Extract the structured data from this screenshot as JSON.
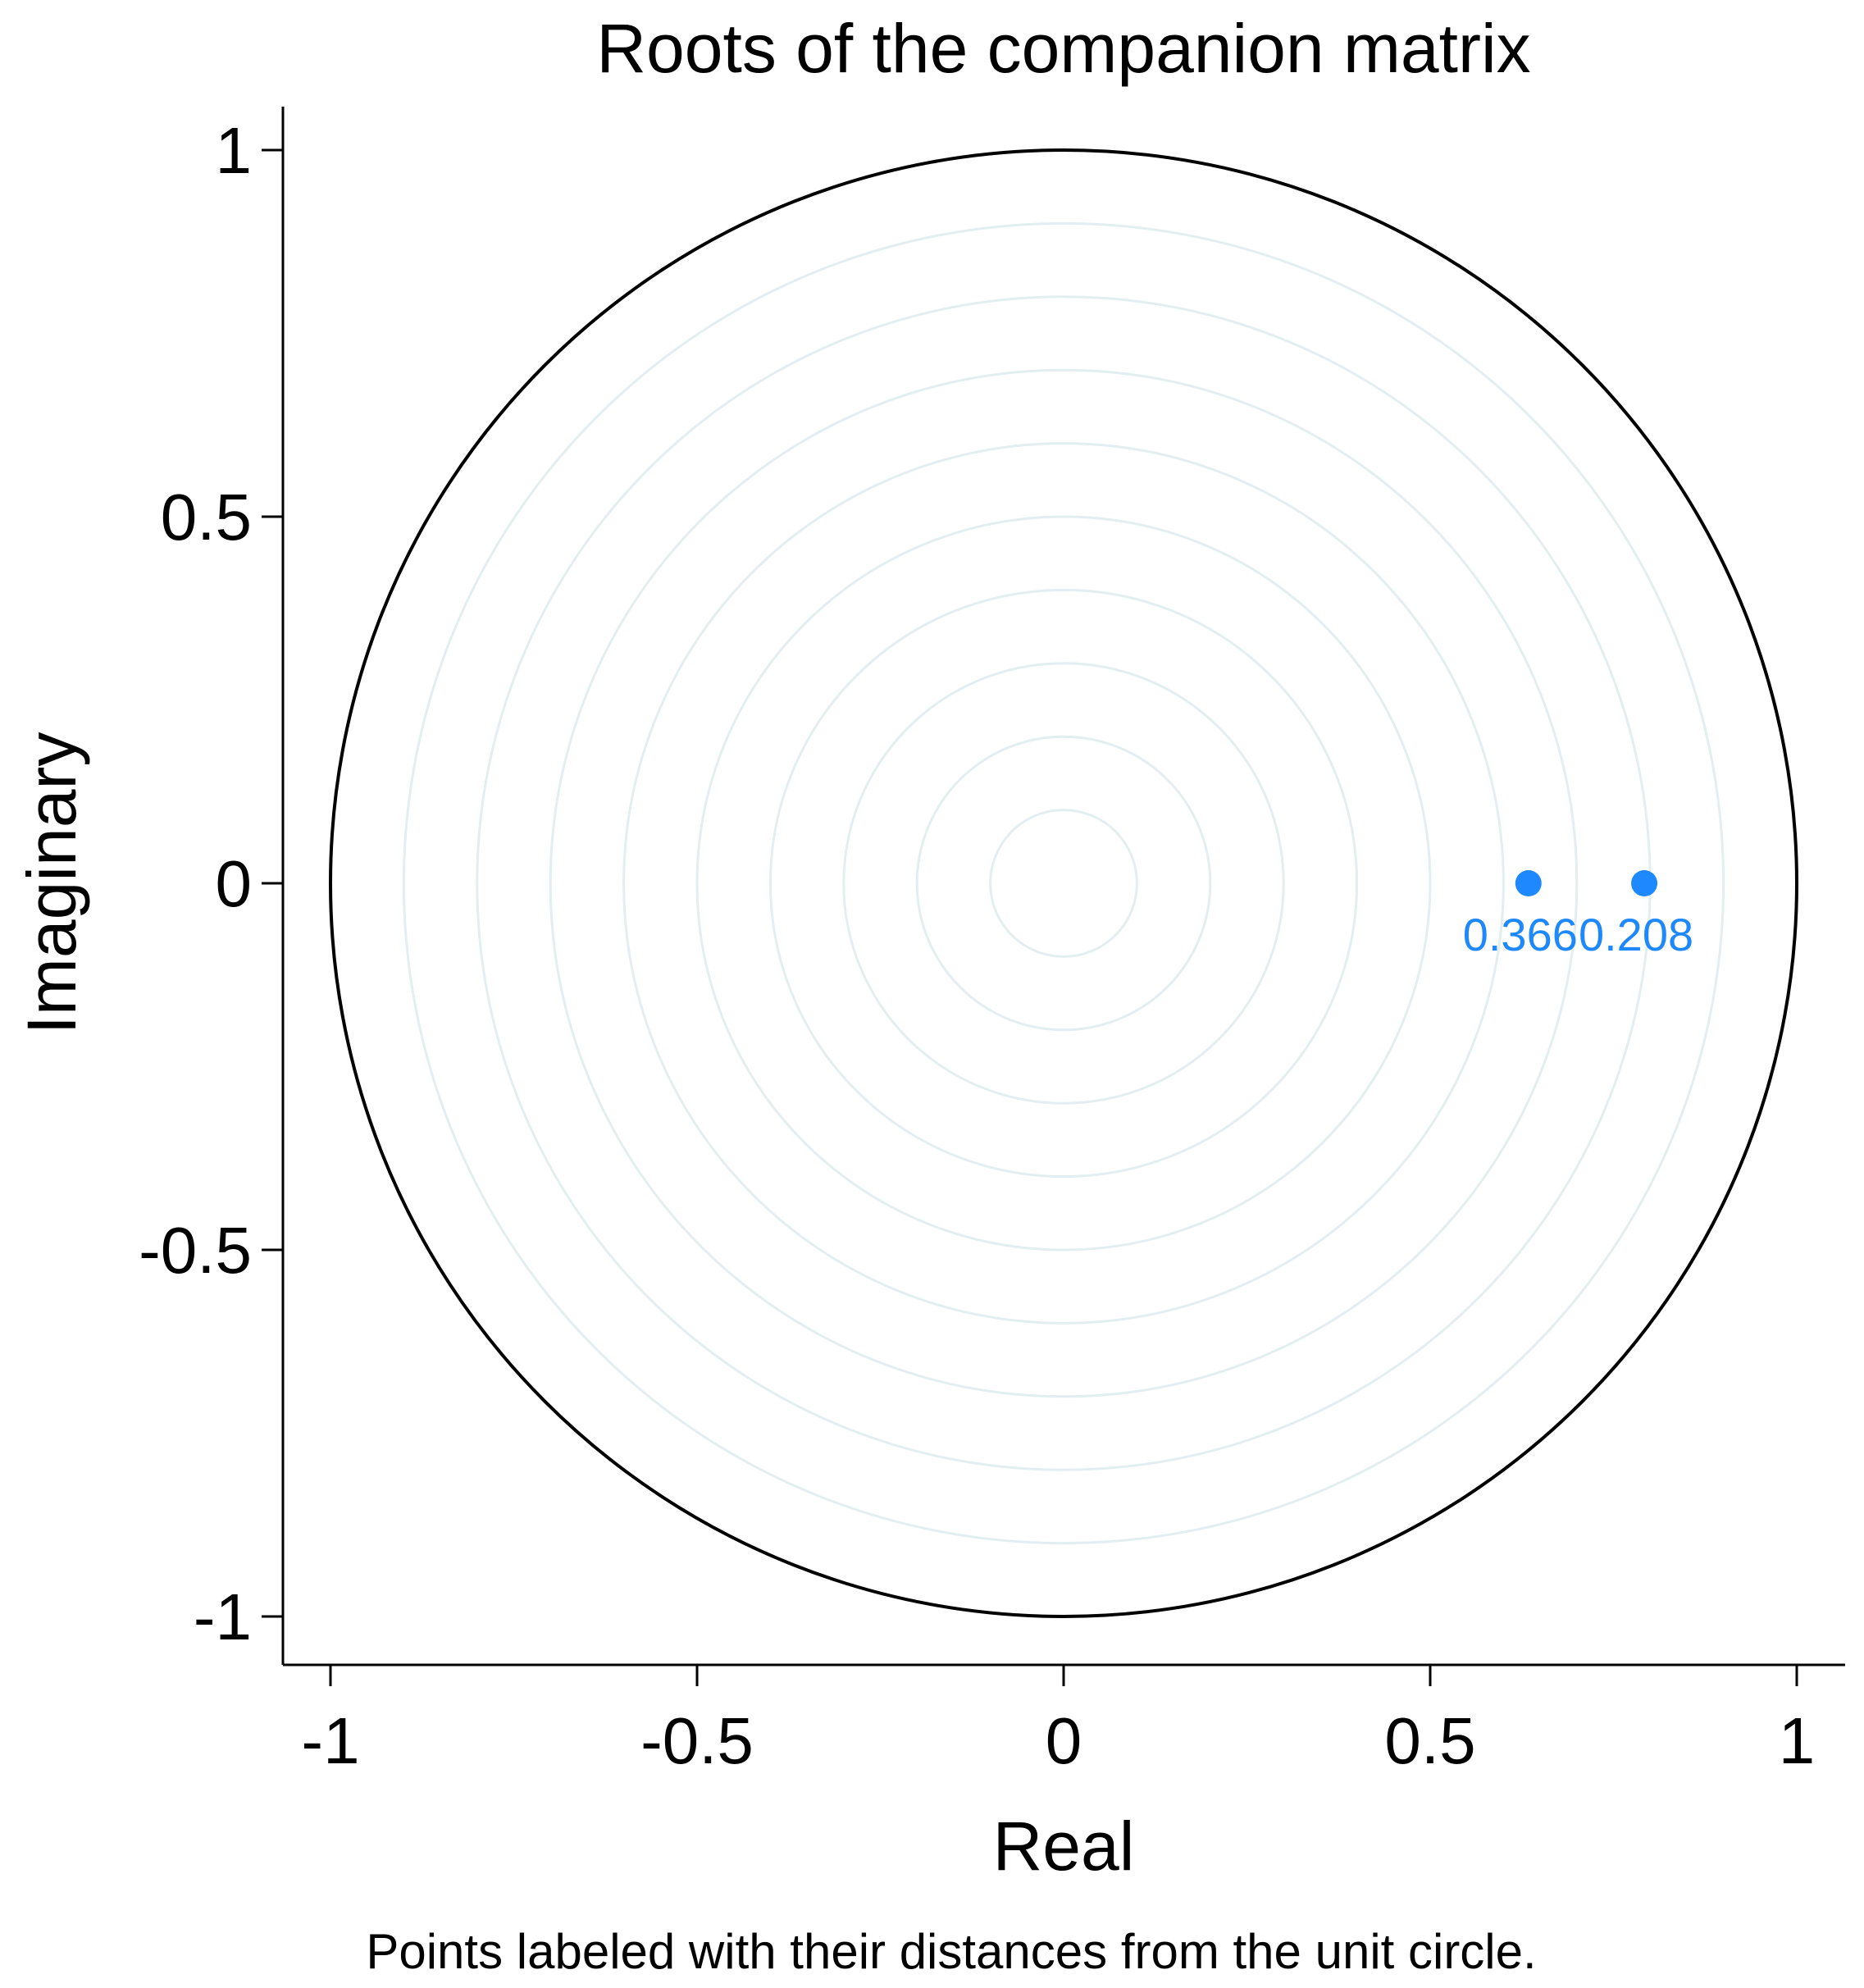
{
  "chart_data": {
    "type": "scatter",
    "title": "Roots of the companion matrix",
    "xlabel": "Real",
    "ylabel": "Imaginary",
    "note": "Points labeled with their distances from the unit circle.",
    "xlim": [
      -1,
      1
    ],
    "ylim": [
      -1,
      1
    ],
    "x_ticks": [
      -1,
      -0.5,
      0,
      0.5,
      1
    ],
    "x_tick_labels": [
      "-1",
      "-0.5",
      "0",
      "0.5",
      "1"
    ],
    "y_ticks": [
      -1,
      -0.5,
      0,
      0.5,
      1
    ],
    "y_tick_labels": [
      "-1",
      "-0.5",
      "0",
      "0.5",
      "1"
    ],
    "unit_circle_radius": 1,
    "grid_circle_radii": [
      0.1,
      0.2,
      0.3,
      0.4,
      0.5,
      0.6,
      0.7,
      0.8,
      0.9
    ],
    "grid": true,
    "series": [
      {
        "points": [
          {
            "x": 0.634,
            "y": 0,
            "label": "0.366"
          },
          {
            "x": 0.792,
            "y": 0,
            "label": "0.208"
          }
        ]
      }
    ],
    "colors": {
      "point": "#1E88FF",
      "unit_circle": "#000000",
      "grid_circle": "#E3EEF1",
      "axis": "#000000",
      "text": "#000000"
    }
  }
}
